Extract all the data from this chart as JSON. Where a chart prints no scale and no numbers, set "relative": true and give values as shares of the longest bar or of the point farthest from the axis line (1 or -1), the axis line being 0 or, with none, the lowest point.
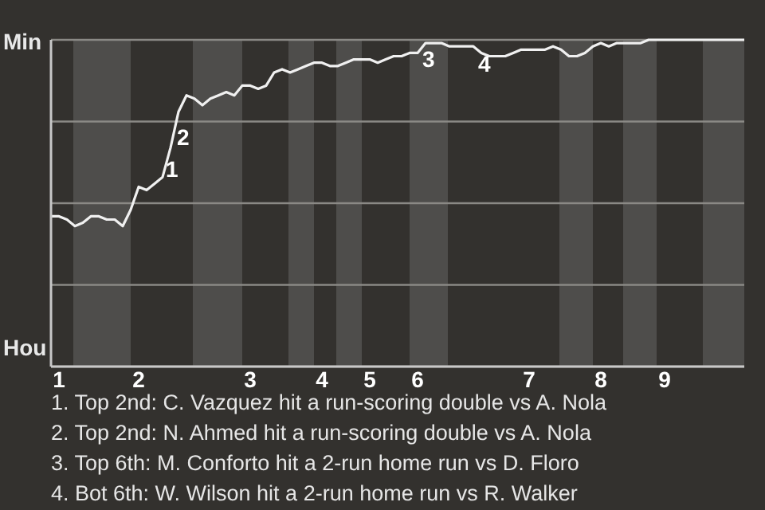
{
  "chart_data": {
    "type": "line",
    "relative": true,
    "categories": [
      null,
      "1",
      null,
      null,
      null,
      null,
      null,
      null,
      null,
      null,
      null,
      "2",
      null,
      null,
      null,
      null,
      null,
      null,
      null,
      null,
      null,
      null,
      null,
      null,
      null,
      "3",
      null,
      null,
      null,
      null,
      null,
      null,
      null,
      null,
      "4",
      null,
      null,
      null,
      null,
      null,
      "5",
      null,
      null,
      null,
      null,
      null,
      "6",
      null,
      null,
      null,
      null,
      null,
      null,
      null,
      null,
      null,
      null,
      null,
      null,
      null,
      "7",
      null,
      null,
      null,
      null,
      null,
      null,
      null,
      null,
      "8",
      null,
      null,
      null,
      null,
      null,
      null,
      null,
      "9",
      null,
      null,
      null,
      null,
      null,
      null,
      null,
      null,
      null,
      null
    ],
    "grid": "y",
    "marker": "none",
    "line_style": "solid",
    "series": [
      {
        "color": "#f0f0f0",
        "values": [
          0.46,
          0.46,
          0.45,
          0.43,
          0.44,
          0.46,
          0.46,
          0.45,
          0.45,
          0.43,
          0.48,
          0.55,
          0.54,
          0.56,
          0.58,
          0.67,
          0.78,
          0.83,
          0.82,
          0.8,
          0.82,
          0.83,
          0.84,
          0.83,
          0.86,
          0.86,
          0.85,
          0.86,
          0.9,
          0.91,
          0.9,
          0.91,
          0.92,
          0.93,
          0.93,
          0.92,
          0.92,
          0.93,
          0.94,
          0.94,
          0.94,
          0.93,
          0.94,
          0.95,
          0.95,
          0.96,
          0.96,
          0.99,
          0.99,
          0.99,
          0.98,
          0.98,
          0.98,
          0.98,
          0.96,
          0.95,
          0.95,
          0.95,
          0.96,
          0.97,
          0.97,
          0.97,
          0.97,
          0.98,
          0.97,
          0.95,
          0.95,
          0.96,
          0.98,
          0.99,
          0.98,
          0.99,
          0.99,
          0.99,
          0.99,
          1,
          1,
          1,
          1,
          1,
          1,
          1,
          1,
          1,
          1,
          1,
          1,
          1
        ]
      }
    ],
    "annotations": [
      "Min",
      "Hou",
      "1",
      "2",
      "3",
      "4",
      "1. Top 2nd: C. Vazquez hit a run-scoring double vs A. Nola",
      "2. Top 2nd: N. Ahmed hit a run-scoring double vs A. Nola",
      "3. Top 6th: M. Conforto hit a 2-run home run vs D. Floro",
      "4. Bot 6th: W. Wilson hit a 2-run home run vs R. Walker"
    ]
  }
}
